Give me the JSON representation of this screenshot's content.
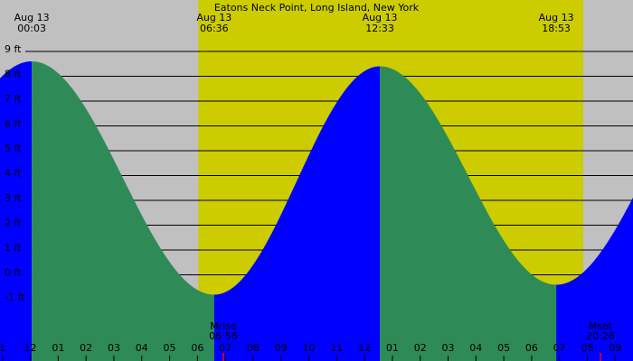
{
  "chart_data": {
    "type": "tide",
    "title": "Eatons Neck Point, Long Island, New York",
    "x": [
      0.05,
      6.6,
      12.55,
      18.883
    ],
    "values": [
      8.6,
      -0.8,
      8.4,
      -0.4
    ],
    "extreme_labels": [
      {
        "date": "Aug 13",
        "time": "00:03"
      },
      {
        "date": "Aug 13",
        "time": "06:36"
      },
      {
        "date": "Aug 13",
        "time": "12:33"
      },
      {
        "date": "Aug 13",
        "time": "18:53"
      }
    ],
    "rising_color": "#0000ff",
    "falling_color": "#2e8b57",
    "day_color": "#cccc00",
    "night_color": "#c0c0c0",
    "daylight": [
      6.03,
      19.85
    ],
    "moon": [
      {
        "x": 6.93,
        "label": "Mrise",
        "time": "06:56"
      },
      {
        "x": 20.47,
        "label": "Mset",
        "time": "20:28"
      }
    ],
    "xlim": [
      -1.09,
      21.64
    ],
    "ylim": [
      -3.47,
      11.07
    ],
    "xticks": [
      {
        "value": -1,
        "label": "1"
      },
      {
        "value": 0,
        "label": "12"
      },
      {
        "value": 1,
        "label": "01"
      },
      {
        "value": 2,
        "label": "02"
      },
      {
        "value": 3,
        "label": "03"
      },
      {
        "value": 4,
        "label": "04"
      },
      {
        "value": 5,
        "label": "05"
      },
      {
        "value": 6,
        "label": "06"
      },
      {
        "value": 7,
        "label": "07"
      },
      {
        "value": 8,
        "label": "08"
      },
      {
        "value": 9,
        "label": "09"
      },
      10,
      11,
      12,
      {
        "value": 13,
        "label": "01"
      },
      {
        "value": 14,
        "label": "02"
      },
      {
        "value": 15,
        "label": "03"
      },
      {
        "value": 16,
        "label": "04"
      },
      {
        "value": 17,
        "label": "05"
      },
      {
        "value": 18,
        "label": "06"
      },
      {
        "value": 19,
        "label": "07"
      },
      {
        "value": 20,
        "label": "08"
      },
      {
        "value": 21,
        "label": "09"
      }
    ],
    "yticks": [
      {
        "value": 9,
        "label": "9 ft"
      },
      {
        "value": 8,
        "label": "8 ft"
      },
      {
        "value": 7,
        "label": "7 ft"
      },
      {
        "value": 6,
        "label": "6 ft"
      },
      {
        "value": 5,
        "label": "5 ft"
      },
      {
        "value": 4,
        "label": "4 ft"
      },
      {
        "value": 3,
        "label": "3 ft"
      },
      {
        "value": 2,
        "label": "2 ft"
      },
      {
        "value": 1,
        "label": "1 ft"
      },
      {
        "value": 0,
        "label": "0 ft"
      },
      {
        "value": -1,
        "label": "-1 ft"
      }
    ],
    "grid": true
  }
}
